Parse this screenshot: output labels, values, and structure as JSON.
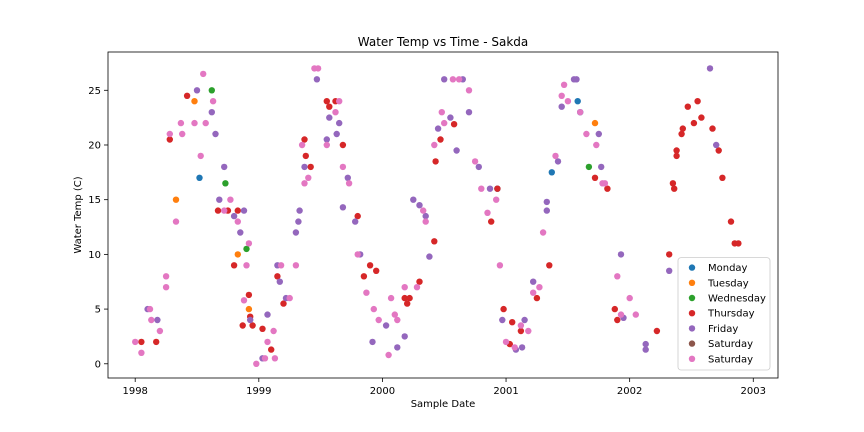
{
  "chart_data": {
    "type": "scatter",
    "title": "Water Temp vs Time - Sakda",
    "xlabel": "Sample Date",
    "ylabel": "Water Temp (C)",
    "xlim": [
      1997.78,
      2003.2
    ],
    "ylim": [
      -1.3,
      28.5
    ],
    "x_ticks": [
      1998,
      1999,
      2000,
      2001,
      2002,
      2003
    ],
    "x_tick_labels": [
      "1998",
      "1999",
      "2000",
      "2001",
      "2002",
      "2003"
    ],
    "y_ticks": [
      0,
      5,
      10,
      15,
      20,
      25
    ],
    "y_tick_labels": [
      "0",
      "5",
      "10",
      "15",
      "20",
      "25"
    ],
    "grid": false,
    "legend_position": "lower-right",
    "series": [
      {
        "name": "Monday",
        "color": "#1f77b4",
        "points": [
          [
            1998.52,
            17.0
          ],
          [
            2000.93,
            16.0
          ],
          [
            2001.37,
            17.5
          ],
          [
            2001.58,
            24.0
          ],
          [
            2001.6,
            23.0
          ]
        ]
      },
      {
        "name": "Tuesday",
        "color": "#ff7f0e",
        "points": [
          [
            1998.33,
            15.0
          ],
          [
            1998.48,
            24.0
          ],
          [
            1998.83,
            10.0
          ],
          [
            1998.92,
            5.0
          ],
          [
            2001.72,
            22.0
          ]
        ]
      },
      {
        "name": "Wednesday",
        "color": "#2ca02c",
        "points": [
          [
            1998.62,
            25.0
          ],
          [
            1998.73,
            16.5
          ],
          [
            1998.9,
            10.5
          ],
          [
            2001.67,
            18.0
          ]
        ]
      },
      {
        "name": "Thursday",
        "color": "#d62728",
        "points": [
          [
            1998.05,
            2.0
          ],
          [
            1998.17,
            2.0
          ],
          [
            1998.28,
            20.5
          ],
          [
            1998.42,
            24.5
          ],
          [
            1998.67,
            14.0
          ],
          [
            1998.75,
            14.0
          ],
          [
            1998.83,
            14.0
          ],
          [
            1998.8,
            9.0
          ],
          [
            1998.87,
            3.5
          ],
          [
            1998.92,
            6.3
          ],
          [
            1998.93,
            4.3
          ],
          [
            1998.95,
            3.5
          ],
          [
            1999.03,
            3.2
          ],
          [
            1999.1,
            1.3
          ],
          [
            1999.15,
            8.0
          ],
          [
            1999.2,
            5.5
          ],
          [
            1999.37,
            20.5
          ],
          [
            1999.38,
            19.0
          ],
          [
            1999.42,
            18.0
          ],
          [
            1999.55,
            24.0
          ],
          [
            1999.57,
            23.5
          ],
          [
            1999.62,
            24.0
          ],
          [
            1999.68,
            20.0
          ],
          [
            1999.8,
            13.5
          ],
          [
            1999.85,
            8.0
          ],
          [
            1999.9,
            9.0
          ],
          [
            1999.95,
            8.5
          ],
          [
            2000.18,
            6.0
          ],
          [
            2000.2,
            5.5
          ],
          [
            2000.22,
            6.0
          ],
          [
            2000.3,
            7.5
          ],
          [
            2000.42,
            11.2
          ],
          [
            2000.43,
            18.5
          ],
          [
            2000.47,
            20.5
          ],
          [
            2000.58,
            21.9
          ],
          [
            2000.88,
            13.0
          ],
          [
            2000.93,
            16.0
          ],
          [
            2000.98,
            5.0
          ],
          [
            2001.03,
            1.8
          ],
          [
            2001.05,
            3.8
          ],
          [
            2001.12,
            3.0
          ],
          [
            2001.25,
            6.0
          ],
          [
            2001.35,
            9.0
          ],
          [
            2001.72,
            17.0
          ],
          [
            2001.82,
            16.0
          ],
          [
            2001.88,
            5.0
          ],
          [
            2001.9,
            4.0
          ],
          [
            2002.22,
            3.0
          ],
          [
            2002.32,
            10.0
          ],
          [
            2002.35,
            16.5
          ],
          [
            2002.36,
            16.0
          ],
          [
            2002.38,
            19.0
          ],
          [
            2002.38,
            19.5
          ],
          [
            2002.42,
            21.0
          ],
          [
            2002.43,
            21.5
          ],
          [
            2002.47,
            23.5
          ],
          [
            2002.52,
            22.0
          ],
          [
            2002.55,
            24.0
          ],
          [
            2002.58,
            22.5
          ],
          [
            2002.67,
            21.5
          ],
          [
            2002.72,
            19.5
          ],
          [
            2002.75,
            17.0
          ],
          [
            2002.82,
            13.0
          ],
          [
            2002.85,
            11.0
          ],
          [
            2002.88,
            11.0
          ]
        ]
      },
      {
        "name": "Friday",
        "color": "#9467bd",
        "points": [
          [
            1998.1,
            5.0
          ],
          [
            1998.18,
            4.0
          ],
          [
            1998.5,
            25.0
          ],
          [
            1998.62,
            23.0
          ],
          [
            1998.65,
            21.0
          ],
          [
            1998.68,
            15.0
          ],
          [
            1998.72,
            18.0
          ],
          [
            1998.8,
            13.5
          ],
          [
            1998.85,
            12.0
          ],
          [
            1998.88,
            14.0
          ],
          [
            1998.93,
            4.0
          ],
          [
            1999.03,
            0.5
          ],
          [
            1999.07,
            4.5
          ],
          [
            1999.15,
            9.0
          ],
          [
            1999.17,
            7.5
          ],
          [
            1999.22,
            6.0
          ],
          [
            1999.3,
            12.0
          ],
          [
            1999.32,
            13.0
          ],
          [
            1999.33,
            14.0
          ],
          [
            1999.37,
            18.0
          ],
          [
            1999.47,
            26.0
          ],
          [
            1999.55,
            20.5
          ],
          [
            1999.57,
            22.5
          ],
          [
            1999.63,
            21.0
          ],
          [
            1999.65,
            22.0
          ],
          [
            1999.68,
            14.3
          ],
          [
            1999.72,
            17.0
          ],
          [
            1999.78,
            13.0
          ],
          [
            1999.82,
            10.0
          ],
          [
            1999.92,
            2.0
          ],
          [
            2000.03,
            3.5
          ],
          [
            2000.12,
            1.5
          ],
          [
            2000.18,
            2.5
          ],
          [
            2000.25,
            15.0
          ],
          [
            2000.3,
            14.5
          ],
          [
            2000.35,
            13.5
          ],
          [
            2000.38,
            9.8
          ],
          [
            2000.45,
            21.5
          ],
          [
            2000.5,
            26.0
          ],
          [
            2000.55,
            22.5
          ],
          [
            2000.6,
            19.5
          ],
          [
            2000.65,
            26.0
          ],
          [
            2000.7,
            23.0
          ],
          [
            2000.78,
            18.0
          ],
          [
            2000.87,
            16.0
          ],
          [
            2000.97,
            4.0
          ],
          [
            2001.08,
            1.3
          ],
          [
            2001.13,
            1.5
          ],
          [
            2001.15,
            4.0
          ],
          [
            2001.22,
            7.5
          ],
          [
            2001.33,
            14.0
          ],
          [
            2001.33,
            14.8
          ],
          [
            2001.42,
            18.5
          ],
          [
            2001.45,
            23.5
          ],
          [
            2001.55,
            26.0
          ],
          [
            2001.57,
            26.0
          ],
          [
            2001.75,
            21.0
          ],
          [
            2001.77,
            18.0
          ],
          [
            2001.93,
            10.0
          ],
          [
            2001.95,
            4.2
          ],
          [
            2002.13,
            1.8
          ],
          [
            2002.13,
            1.3
          ],
          [
            2002.32,
            8.5
          ],
          [
            2002.65,
            27.0
          ],
          [
            2002.7,
            20.0
          ]
        ]
      },
      {
        "name": "Saturday",
        "color": "#8c564b",
        "points": []
      },
      {
        "name": "Saturday",
        "color": "#e377c2",
        "points": [
          [
            1998.0,
            2.0
          ],
          [
            1998.05,
            1.0
          ],
          [
            1998.12,
            5.0
          ],
          [
            1998.13,
            4.0
          ],
          [
            1998.2,
            3.0
          ],
          [
            1998.25,
            8.0
          ],
          [
            1998.25,
            7.0
          ],
          [
            1998.28,
            21.0
          ],
          [
            1998.33,
            13.0
          ],
          [
            1998.37,
            22.0
          ],
          [
            1998.38,
            21.0
          ],
          [
            1998.48,
            22.0
          ],
          [
            1998.53,
            19.0
          ],
          [
            1998.55,
            26.5
          ],
          [
            1998.57,
            22.0
          ],
          [
            1998.63,
            24.0
          ],
          [
            1998.72,
            14.0
          ],
          [
            1998.77,
            15.0
          ],
          [
            1998.83,
            13.0
          ],
          [
            1998.88,
            5.8
          ],
          [
            1998.9,
            9.0
          ],
          [
            1998.92,
            11.0
          ],
          [
            1998.98,
            0.0
          ],
          [
            1999.05,
            0.5
          ],
          [
            1999.07,
            2.0
          ],
          [
            1999.12,
            3.0
          ],
          [
            1999.13,
            0.5
          ],
          [
            1999.18,
            9.0
          ],
          [
            1999.25,
            6.0
          ],
          [
            1999.3,
            9.0
          ],
          [
            1999.35,
            20.0
          ],
          [
            1999.37,
            16.5
          ],
          [
            1999.4,
            17.0
          ],
          [
            1999.45,
            27.0
          ],
          [
            1999.48,
            27.0
          ],
          [
            1999.55,
            20.0
          ],
          [
            1999.62,
            23.0
          ],
          [
            1999.65,
            24.0
          ],
          [
            1999.68,
            18.0
          ],
          [
            1999.73,
            16.5
          ],
          [
            1999.8,
            10.0
          ],
          [
            1999.87,
            6.5
          ],
          [
            1999.93,
            5.0
          ],
          [
            1999.97,
            4.0
          ],
          [
            2000.05,
            0.8
          ],
          [
            2000.07,
            6.0
          ],
          [
            2000.1,
            4.5
          ],
          [
            2000.12,
            4.0
          ],
          [
            2000.18,
            7.0
          ],
          [
            2000.28,
            7.0
          ],
          [
            2000.33,
            14.0
          ],
          [
            2000.35,
            13.0
          ],
          [
            2000.42,
            20.0
          ],
          [
            2000.48,
            23.0
          ],
          [
            2000.5,
            22.0
          ],
          [
            2000.57,
            26.0
          ],
          [
            2000.62,
            26.0
          ],
          [
            2000.7,
            25.0
          ],
          [
            2000.75,
            18.5
          ],
          [
            2000.8,
            16.0
          ],
          [
            2000.85,
            13.8
          ],
          [
            2000.92,
            15.0
          ],
          [
            2000.95,
            9.0
          ],
          [
            2001.0,
            2.0
          ],
          [
            2001.07,
            1.5
          ],
          [
            2001.12,
            3.5
          ],
          [
            2001.18,
            3.0
          ],
          [
            2001.22,
            6.5
          ],
          [
            2001.27,
            7.0
          ],
          [
            2001.3,
            12.0
          ],
          [
            2001.4,
            19.0
          ],
          [
            2001.45,
            24.5
          ],
          [
            2001.47,
            25.5
          ],
          [
            2001.5,
            24.0
          ],
          [
            2001.6,
            23.0
          ],
          [
            2001.65,
            21.0
          ],
          [
            2001.73,
            20.0
          ],
          [
            2001.78,
            16.5
          ],
          [
            2001.8,
            16.5
          ],
          [
            2001.9,
            8.0
          ],
          [
            2001.93,
            4.5
          ],
          [
            2002.0,
            6.0
          ],
          [
            2002.05,
            4.5
          ]
        ]
      }
    ]
  }
}
